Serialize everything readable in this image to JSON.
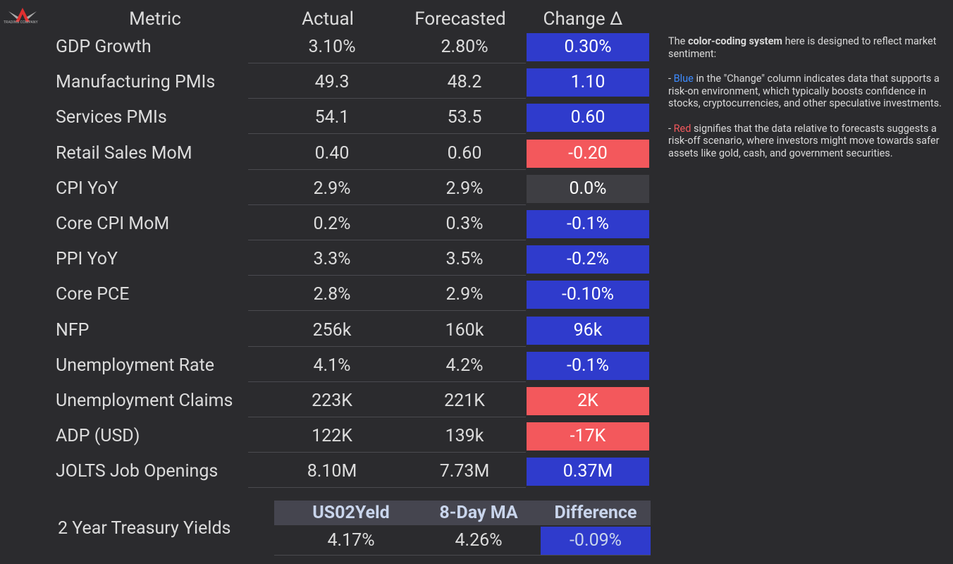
{
  "logo": "TRADING COMPANY",
  "table": {
    "columns": [
      "Metric",
      "Actual",
      "Forecasted",
      "Change Δ"
    ],
    "rows": [
      {
        "metric": "GDP Growth",
        "actual": "3.10%",
        "forecast": "2.80%",
        "change": "0.30%",
        "color": "#2f3bcc"
      },
      {
        "metric": "Manufacturing PMIs",
        "actual": "49.3",
        "forecast": "48.2",
        "change": "1.10",
        "color": "#2f3bcc"
      },
      {
        "metric": "Services PMIs",
        "actual": "54.1",
        "forecast": "53.5",
        "change": "0.60",
        "color": "#2f3bcc"
      },
      {
        "metric": "Retail Sales MoM",
        "actual": "0.40",
        "forecast": "0.60",
        "change": "-0.20",
        "color": "#f3585c"
      },
      {
        "metric": "CPI YoY",
        "actual": "2.9%",
        "forecast": "2.9%",
        "change": "0.0%",
        "color": "#3e3e43"
      },
      {
        "metric": "Core CPI MoM",
        "actual": "0.2%",
        "forecast": "0.3%",
        "change": "-0.1%",
        "color": "#2f3bcc"
      },
      {
        "metric": "PPI YoY",
        "actual": "3.3%",
        "forecast": "3.5%",
        "change": "-0.2%",
        "color": "#2f3bcc"
      },
      {
        "metric": "Core PCE",
        "actual": "2.8%",
        "forecast": "2.9%",
        "change": "-0.10%",
        "color": "#2f3bcc"
      },
      {
        "metric": "NFP",
        "actual": "256k",
        "forecast": "160k",
        "change": "96k",
        "color": "#2f3bcc"
      },
      {
        "metric": "Unemployment Rate",
        "actual": "4.1%",
        "forecast": "4.2%",
        "change": "-0.1%",
        "color": "#2f3bcc"
      },
      {
        "metric": "Unemployment Claims",
        "actual": "223K",
        "forecast": "221K",
        "change": "2K",
        "color": "#f3585c"
      },
      {
        "metric": "ADP (USD)",
        "actual": "122K",
        "forecast": "139k",
        "change": "-17K",
        "color": "#f3585c"
      },
      {
        "metric": "JOLTS Job Openings",
        "actual": "8.10M",
        "forecast": "7.73M",
        "change": "0.37M",
        "color": "#2f3bcc"
      }
    ]
  },
  "treasury": {
    "label": "2 Year Treasury Yields",
    "columns": [
      "US02Yeld",
      "8-Day MA",
      "Difference"
    ],
    "values": [
      "4.17%",
      "4.26%",
      "-0.09%"
    ],
    "difference_color": "#2f3bcc"
  },
  "note": [
    [
      {
        "text": "The "
      },
      {
        "text": "color-coding system",
        "bold": true
      },
      {
        "text": " here is designed to reflect market sentiment:"
      }
    ],
    [
      {
        "text": "- "
      },
      {
        "text": "Blue",
        "color": "#3d8bff"
      },
      {
        "text": " in the \"Change\" column indicates data that supports a risk-on environment, which typically boosts confidence in stocks, cryptocurrencies, and other speculative investments."
      }
    ],
    [
      {
        "text": "- "
      },
      {
        "text": "Red",
        "color": "#f3585c"
      },
      {
        "text": " signifies that the data relative to forecasts suggests a risk-off scenario, where investors might move towards safer assets like gold, cash, and government securities."
      }
    ]
  ]
}
